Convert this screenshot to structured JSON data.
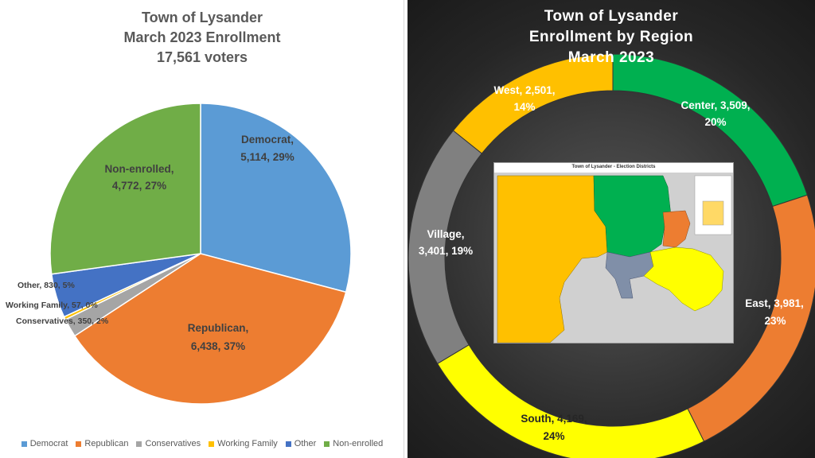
{
  "colors": {
    "democrat": "#5b9bd5",
    "republican": "#ed7d31",
    "conservatives": "#a5a5a5",
    "working_family": "#ffc000",
    "other": "#4472c4",
    "non_enrolled": "#70ad47",
    "west": "#ffc000",
    "center": "#00b050",
    "east": "#ed7d31",
    "south": "#ffff00",
    "village": "#808080"
  },
  "left": {
    "title_line1": "Town of Lysander",
    "title_line2": "March 2023 Enrollment",
    "title_line3": "17,561 voters"
  },
  "right": {
    "title_line1": "Town of Lysander",
    "title_line2": "Enrollment  by Region",
    "title_line3": "March 2023"
  },
  "map": {
    "title": "Town of Lysander - Election Districts"
  },
  "chart_data": [
    {
      "type": "pie",
      "title": "Town of Lysander March 2023 Enrollment 17,561 voters",
      "legend_position": "bottom",
      "slices": [
        {
          "name": "Democrat",
          "value": 5114,
          "percent": 29,
          "label1": "Democrat,",
          "label2": "5,114, 29%",
          "color": "#5b9bd5"
        },
        {
          "name": "Republican",
          "value": 6438,
          "percent": 37,
          "label1": "Republican,",
          "label2": "6,438, 37%",
          "color": "#ed7d31"
        },
        {
          "name": "Conservatives",
          "value": 350,
          "percent": 2,
          "label1": "Conservatives, 350, 2%",
          "label2": "",
          "color": "#a5a5a5"
        },
        {
          "name": "Working Family",
          "value": 57,
          "percent": 0,
          "label1": "Working Family, 57, 0%",
          "label2": "",
          "color": "#ffc000"
        },
        {
          "name": "Other",
          "value": 830,
          "percent": 5,
          "label1": "Other, 830, 5%",
          "label2": "",
          "color": "#4472c4"
        },
        {
          "name": "Non-enrolled",
          "value": 4772,
          "percent": 27,
          "label1": "Non-enrolled,",
          "label2": "4,772, 27%",
          "color": "#70ad47"
        }
      ]
    },
    {
      "type": "pie",
      "subtype": "doughnut",
      "title": "Town of Lysander Enrollment by Region March 2023",
      "slices": [
        {
          "name": "Center",
          "value": 3509,
          "percent": 20,
          "label1": "Center, 3,509,",
          "label2": "20%",
          "color": "#00b050"
        },
        {
          "name": "East",
          "value": 3981,
          "percent": 23,
          "label1": "East, 3,981,",
          "label2": "23%",
          "color": "#ed7d31"
        },
        {
          "name": "South",
          "value": 4169,
          "percent": 24,
          "label1": "South, 4,169,",
          "label2": "24%",
          "color": "#ffff00"
        },
        {
          "name": "Village",
          "value": 3401,
          "percent": 19,
          "label1": "Village,",
          "label2": "3,401, 19%",
          "color": "#808080"
        },
        {
          "name": "West",
          "value": 2501,
          "percent": 14,
          "label1": "West, 2,501,",
          "label2": "14%",
          "color": "#ffc000"
        }
      ]
    }
  ]
}
